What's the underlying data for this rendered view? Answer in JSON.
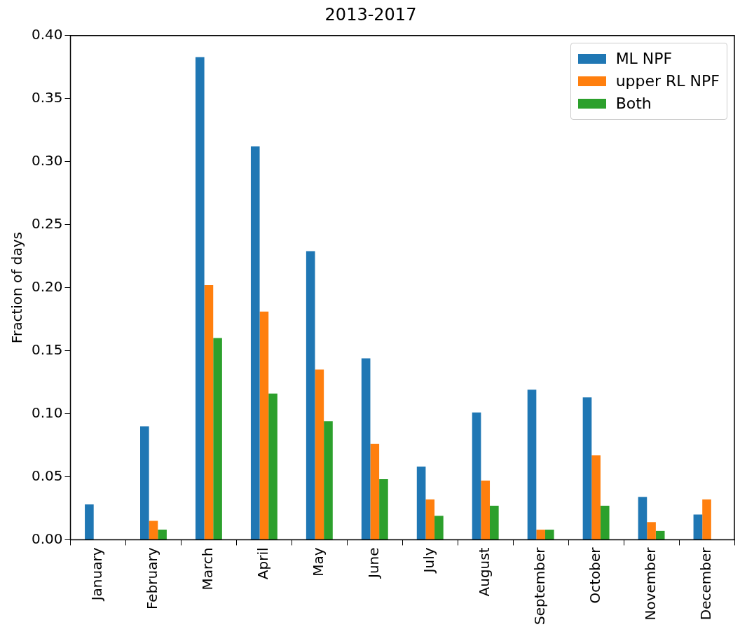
{
  "chart_data": {
    "type": "bar",
    "title": "2013-2017",
    "ylabel": "Fraction of days",
    "categories": [
      "January",
      "February",
      "March",
      "April",
      "May",
      "June",
      "July",
      "August",
      "September",
      "October",
      "November",
      "December"
    ],
    "series": [
      {
        "name": "ML NPF",
        "color": "#1f77b4",
        "values": [
          0.028,
          0.09,
          0.383,
          0.312,
          0.229,
          0.144,
          0.058,
          0.101,
          0.119,
          0.113,
          0.034,
          0.02
        ]
      },
      {
        "name": "upper RL NPF",
        "color": "#ff7f0e",
        "values": [
          0,
          0.015,
          0.202,
          0.181,
          0.135,
          0.076,
          0.032,
          0.047,
          0.008,
          0.067,
          0.014,
          0.032
        ]
      },
      {
        "name": "Both",
        "color": "#2ca02c",
        "values": [
          0,
          0.008,
          0.16,
          0.116,
          0.094,
          0.048,
          0.019,
          0.027,
          0.008,
          0.027,
          0.007,
          0
        ]
      }
    ],
    "ylim": [
      0,
      0.4
    ],
    "yticks": [
      {
        "value": 0,
        "label": "0.00"
      },
      {
        "value": 0.05,
        "label": "0.05"
      },
      {
        "value": 0.1,
        "label": "0.10"
      },
      {
        "value": 0.15,
        "label": "0.15"
      },
      {
        "value": 0.2,
        "label": "0.20"
      },
      {
        "value": 0.25,
        "label": "0.25"
      },
      {
        "value": 0.3,
        "label": "0.30"
      },
      {
        "value": 0.35,
        "label": "0.35"
      },
      {
        "value": 0.4,
        "label": "0.40"
      }
    ],
    "grid": false,
    "legend": "top right"
  }
}
